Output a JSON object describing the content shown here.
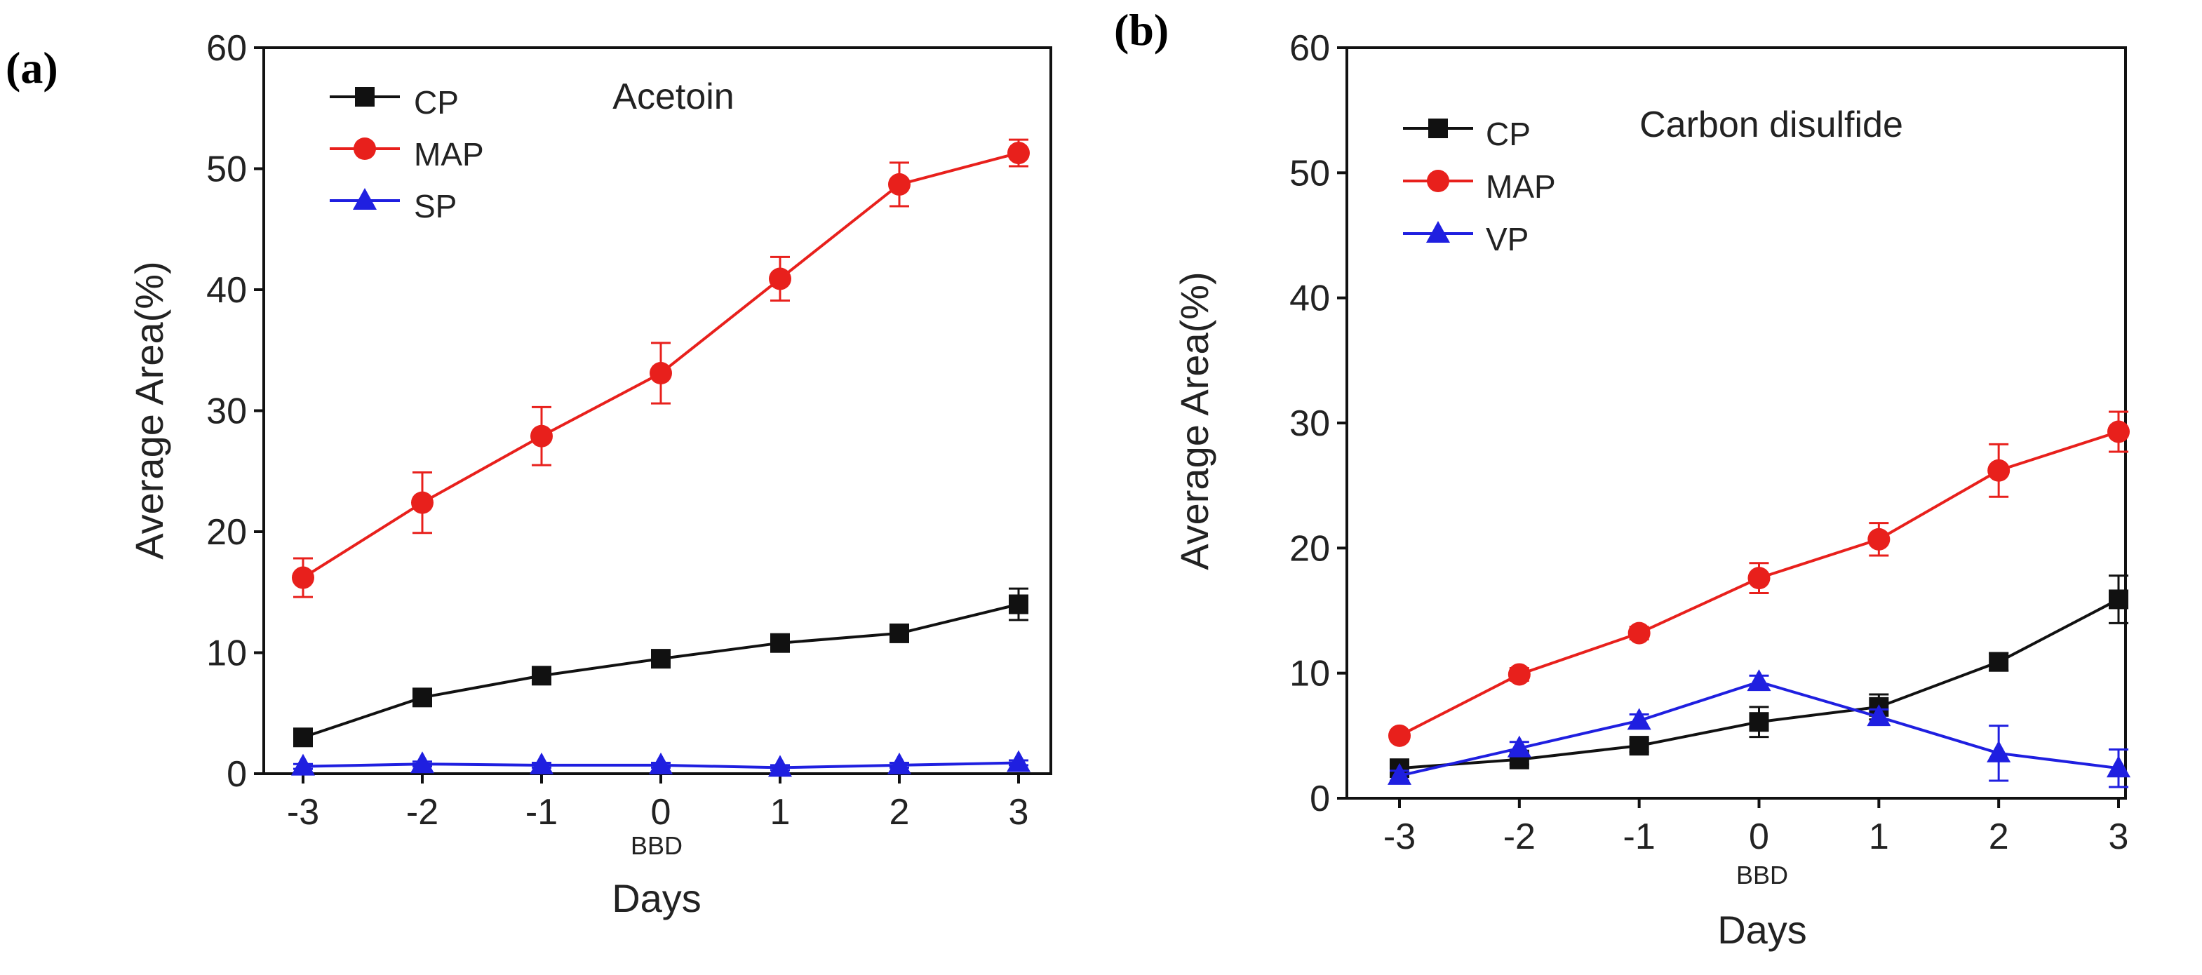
{
  "chart_data": [
    {
      "type": "line",
      "panel_label": "(a)",
      "title": "Acetoin",
      "xlabel": "Days",
      "x_annotation": "BBD",
      "ylabel": "Average Area(%)",
      "x": [
        -3,
        -2,
        -1,
        0,
        1,
        2,
        3
      ],
      "x_tick_labels": [
        "-3",
        "-2",
        "-1",
        "0",
        "1",
        "2",
        "3"
      ],
      "ylim": [
        0,
        60
      ],
      "y_ticks": [
        0,
        10,
        20,
        30,
        40,
        50,
        60
      ],
      "y_tick_labels": [
        "0",
        "10",
        "20",
        "30",
        "40",
        "50",
        "60"
      ],
      "legend_position": "top-left",
      "series": [
        {
          "name": "CP",
          "color": "#111111",
          "marker": "square",
          "values": [
            3.0,
            6.3,
            8.1,
            9.5,
            10.8,
            11.6,
            14.0
          ],
          "errors": [
            0.4,
            0.5,
            0.5,
            0.5,
            0.5,
            0.6,
            1.3
          ]
        },
        {
          "name": "MAP",
          "color": "#e8201c",
          "marker": "circle",
          "values": [
            16.2,
            22.4,
            27.9,
            33.1,
            40.9,
            48.7,
            51.3
          ],
          "errors": [
            1.6,
            2.5,
            2.4,
            2.5,
            1.8,
            1.8,
            1.1
          ]
        },
        {
          "name": "SP",
          "color": "#1f1fe0",
          "marker": "triangle",
          "values": [
            0.6,
            0.8,
            0.7,
            0.7,
            0.5,
            0.7,
            0.9
          ],
          "errors": [
            0.2,
            0.2,
            0.2,
            0.2,
            0.2,
            0.2,
            0.2
          ]
        }
      ]
    },
    {
      "type": "line",
      "panel_label": "(b)",
      "title": "Carbon disulfide",
      "xlabel": "Days",
      "x_annotation": "BBD",
      "ylabel": "Average Area(%)",
      "x": [
        -3,
        -2,
        -1,
        0,
        1,
        2,
        3
      ],
      "x_tick_labels": [
        "-3",
        "-2",
        "-1",
        "0",
        "1",
        "2",
        "3"
      ],
      "ylim": [
        0,
        60
      ],
      "y_ticks": [
        0,
        10,
        20,
        30,
        40,
        50,
        60
      ],
      "y_tick_labels": [
        "0",
        "10",
        "20",
        "30",
        "40",
        "50",
        "60"
      ],
      "legend_position": "top-left",
      "series": [
        {
          "name": "CP",
          "color": "#111111",
          "marker": "square",
          "values": [
            2.4,
            3.1,
            4.2,
            6.1,
            7.3,
            10.9,
            15.9
          ],
          "errors": [
            0.4,
            0.4,
            0.5,
            1.2,
            1.0,
            0.7,
            1.9
          ]
        },
        {
          "name": "MAP",
          "color": "#e8201c",
          "marker": "circle",
          "values": [
            5.0,
            9.9,
            13.2,
            17.6,
            20.7,
            26.2,
            29.3
          ],
          "errors": [
            0.4,
            0.5,
            0.5,
            1.2,
            1.3,
            2.1,
            1.6
          ]
        },
        {
          "name": "VP",
          "color": "#1f1fe0",
          "marker": "triangle",
          "values": [
            1.8,
            4.0,
            6.2,
            9.3,
            6.5,
            3.6,
            2.4
          ],
          "errors": [
            0.4,
            0.5,
            0.5,
            0.5,
            0.6,
            2.2,
            1.5
          ]
        }
      ]
    }
  ]
}
